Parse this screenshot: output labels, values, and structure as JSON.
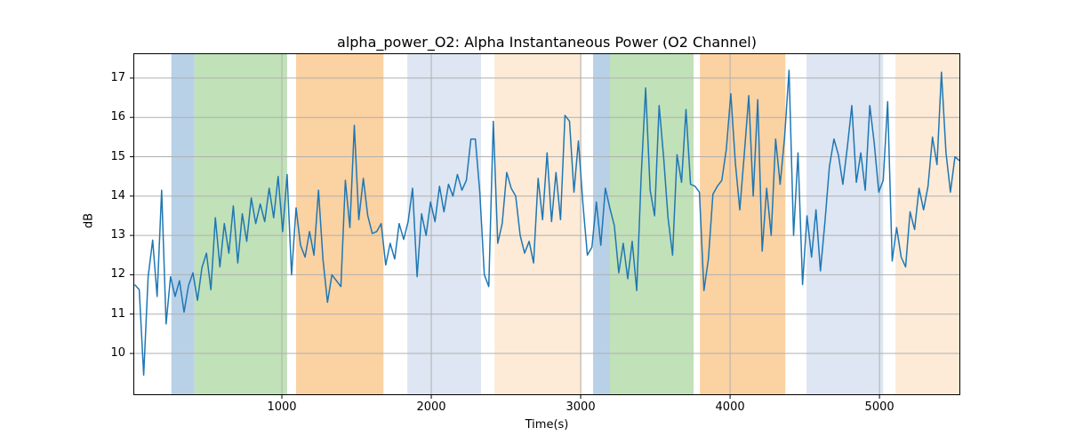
{
  "chart_data": {
    "type": "line",
    "title": "alpha_power_O2: Alpha Instantaneous Power (O2 Channel)",
    "xlabel": "Time(s)",
    "ylabel": "dB",
    "xlim": [
      6,
      5541
    ],
    "ylim": [
      8.94,
      17.63
    ],
    "xticks": [
      1000,
      2000,
      3000,
      4000,
      5000
    ],
    "yticks": [
      10,
      11,
      12,
      13,
      14,
      15,
      16,
      17
    ],
    "grid": true,
    "grid_color": "#b0b0b0",
    "spine_color": "#000000",
    "legend": "none",
    "line_color": "#1f77b4",
    "line_width": 1.5,
    "band_colors": {
      "blue": "#b8d1e7",
      "green": "#c1e1b9",
      "orange": "#fbd2a2",
      "lightblue": "#dde6f2",
      "peach": "#fdebd7"
    },
    "bands": [
      {
        "stage": "blue",
        "start": 260,
        "end": 415
      },
      {
        "stage": "green",
        "start": 415,
        "end": 1035
      },
      {
        "stage": "orange",
        "start": 1095,
        "end": 1680
      },
      {
        "stage": "lightblue",
        "start": 1840,
        "end": 2333
      },
      {
        "stage": "peach",
        "start": 2423,
        "end": 3006
      },
      {
        "stage": "blue",
        "start": 3083,
        "end": 3196
      },
      {
        "stage": "green",
        "start": 3196,
        "end": 3756
      },
      {
        "stage": "orange",
        "start": 3798,
        "end": 4370
      },
      {
        "stage": "lightblue",
        "start": 4512,
        "end": 5025
      },
      {
        "stage": "peach",
        "start": 5107,
        "end": 5541
      }
    ],
    "series": [
      {
        "name": "alpha_power_O2",
        "x_start": 15,
        "x_step": 30,
        "values": [
          11.75,
          11.62,
          9.45,
          11.95,
          12.88,
          11.45,
          14.15,
          10.75,
          11.95,
          11.45,
          11.85,
          11.05,
          11.72,
          12.05,
          11.35,
          12.18,
          12.55,
          11.62,
          13.45,
          12.2,
          13.3,
          12.55,
          13.75,
          12.3,
          13.55,
          12.85,
          13.95,
          13.3,
          13.8,
          13.35,
          14.2,
          13.45,
          14.5,
          13.1,
          14.55,
          12.0,
          13.7,
          12.75,
          12.45,
          13.1,
          12.5,
          14.15,
          12.4,
          11.3,
          12.0,
          11.85,
          11.7,
          14.4,
          13.2,
          15.8,
          13.4,
          14.45,
          13.5,
          13.05,
          13.1,
          13.3,
          12.25,
          12.8,
          12.4,
          13.3,
          12.9,
          13.35,
          14.2,
          11.95,
          13.55,
          13.0,
          13.85,
          13.35,
          14.25,
          13.6,
          14.3,
          14.0,
          14.55,
          14.15,
          14.4,
          15.45,
          15.45,
          14.1,
          12.0,
          11.7,
          15.9,
          12.8,
          13.3,
          14.6,
          14.2,
          14.0,
          13.0,
          12.55,
          12.85,
          12.3,
          14.45,
          13.4,
          15.1,
          13.35,
          14.6,
          13.4,
          16.05,
          15.9,
          14.1,
          15.4,
          13.8,
          12.5,
          12.7,
          13.85,
          12.75,
          14.2,
          13.7,
          13.25,
          12.05,
          12.8,
          11.9,
          12.85,
          11.6,
          14.5,
          16.75,
          14.15,
          13.5,
          16.3,
          15.0,
          13.45,
          12.5,
          15.05,
          14.35,
          16.2,
          14.3,
          14.25,
          14.1,
          11.6,
          12.4,
          14.05,
          14.25,
          14.4,
          15.2,
          16.6,
          14.85,
          13.65,
          15.05,
          16.55,
          14.0,
          16.45,
          12.6,
          14.2,
          13.0,
          15.45,
          14.3,
          15.5,
          17.2,
          13.0,
          15.1,
          11.75,
          13.5,
          12.45,
          13.65,
          12.1,
          13.35,
          14.75,
          15.45,
          15.05,
          14.3,
          15.25,
          16.3,
          14.35,
          15.1,
          14.15,
          16.3,
          15.35,
          14.1,
          14.4,
          16.4,
          12.35,
          13.2,
          12.45,
          12.2,
          13.6,
          13.15,
          14.2,
          13.65,
          14.25,
          15.5,
          14.8,
          17.15,
          15.1,
          14.1,
          15.0,
          14.9
        ]
      }
    ]
  }
}
